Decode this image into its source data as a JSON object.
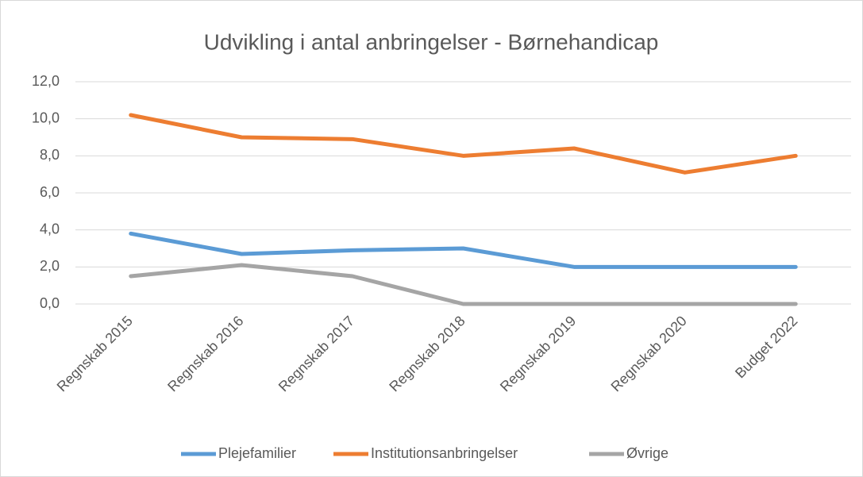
{
  "chart_data": {
    "type": "line",
    "title": "Udvikling i antal anbringelser - Børnehandicap",
    "categories": [
      "Regnskab 2015",
      "Regnskab 2016",
      "Regnskab 2017",
      "Regnskab 2018",
      "Regnskab 2019",
      "Regnskab 2020",
      "Budget 2022"
    ],
    "series": [
      {
        "name": "Plejefamilier",
        "color": "#5b9bd5",
        "values": [
          3.8,
          2.7,
          2.9,
          3.0,
          2.0,
          2.0,
          2.0
        ]
      },
      {
        "name": "Institutionsanbringelser",
        "color": "#ed7d31",
        "values": [
          10.2,
          9.0,
          8.9,
          8.0,
          8.4,
          7.1,
          8.0
        ]
      },
      {
        "name": "Øvrige",
        "color": "#a5a5a5",
        "values": [
          1.5,
          2.1,
          1.5,
          0,
          0,
          0,
          0
        ]
      }
    ],
    "ylim": [
      0,
      12
    ],
    "yticks": [
      {
        "value": 0,
        "label": "0,0"
      },
      {
        "value": 2,
        "label": "2,0"
      },
      {
        "value": 4,
        "label": "4,0"
      },
      {
        "value": 6,
        "label": "6,0"
      },
      {
        "value": 8,
        "label": "8,0"
      },
      {
        "value": 10,
        "label": "10,0"
      },
      {
        "value": 12,
        "label": "12,0"
      }
    ],
    "grid": true,
    "legend": "bottom"
  }
}
